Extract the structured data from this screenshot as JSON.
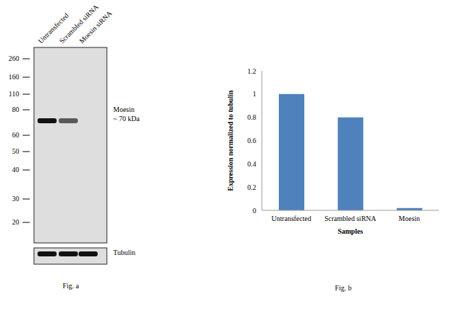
{
  "chart_data": {
    "type": "bar",
    "caption": "Fig. b",
    "x_label": "Samples",
    "y_label": "Expression normalized to tubulin",
    "categories": [
      "Untransfected",
      "Scrambled siRNA",
      "Moesin"
    ],
    "values": [
      1,
      0.8,
      0.02
    ],
    "color": "#4f81bd",
    "ylim": [
      0,
      1.2
    ],
    "yticks": [
      0,
      0.2,
      0.4,
      0.6,
      0.8,
      1,
      1.2
    ],
    "grid": false
  },
  "blot": {
    "caption": "Fig. a",
    "lanes": [
      "Untransfected",
      "Scrambled siRNA",
      "Moesin siRNA"
    ],
    "markers": [
      260,
      160,
      110,
      80,
      60,
      50,
      40,
      30,
      20
    ],
    "panels": [
      {
        "label": [
          "Moesin",
          "~ 70 kDa"
        ],
        "bands": [
          1,
          0.65,
          0
        ]
      },
      {
        "label": [
          "Tubulin"
        ],
        "bands": [
          1,
          1,
          1
        ]
      }
    ]
  }
}
